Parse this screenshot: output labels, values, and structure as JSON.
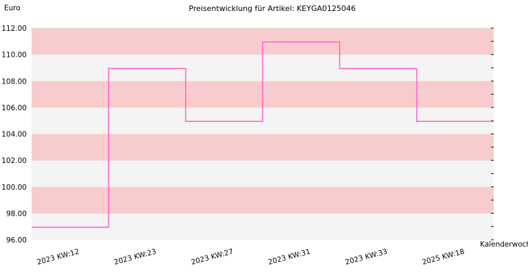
{
  "chart_data": {
    "type": "line",
    "step": true,
    "title": "Preisentwicklung für Artikel: KEYGA0125046",
    "ylabel": "Euro",
    "xlabel": "Kalenderwoche",
    "ylim": [
      96.0,
      112.0
    ],
    "yticks": [
      "96.00",
      "98.00",
      "100.00",
      "102.00",
      "104.00",
      "106.00",
      "108.00",
      "110.00",
      "112.00"
    ],
    "categories": [
      "2023 KW:12",
      "2023 KW:23",
      "2023 KW:27",
      "2023 KW:31",
      "2023 KW:33",
      "2025 KW:18"
    ],
    "series": [
      {
        "values": [
          96.95,
          108.95,
          104.95,
          110.95,
          108.95,
          104.95
        ]
      }
    ],
    "grid": "horizontal alternating bands",
    "colors": {
      "line": "#ff66cc",
      "band_a": "#f8cccc",
      "band_b": "#f4f4f4",
      "axis": "#000000"
    }
  }
}
